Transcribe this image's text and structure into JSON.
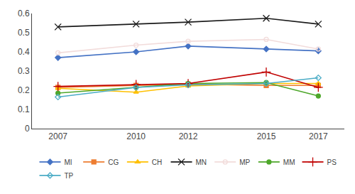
{
  "chart_data": {
    "type": "line",
    "x": [
      2007,
      2010,
      2012,
      2015,
      2017
    ],
    "series": [
      {
        "name": "MI",
        "color": "#4472C4",
        "marker": "diamond",
        "values": [
          0.37,
          0.4,
          0.43,
          0.415,
          0.405
        ]
      },
      {
        "name": "CG",
        "color": "#ED7D31",
        "marker": "square",
        "values": [
          0.215,
          0.225,
          0.232,
          0.225,
          0.225
        ]
      },
      {
        "name": "CH",
        "color": "#FFC000",
        "marker": "triangle-up",
        "values": [
          0.21,
          0.19,
          0.222,
          0.235,
          0.235
        ]
      },
      {
        "name": "MN",
        "color": "#1a1a1a",
        "marker": "x-thin-open",
        "values": [
          0.53,
          0.545,
          0.555,
          0.575,
          0.545
        ]
      },
      {
        "name": "MP",
        "color": "#F2DCDB",
        "marker": "circle-open",
        "values": [
          0.395,
          0.435,
          0.455,
          0.465,
          0.415
        ]
      },
      {
        "name": "MM",
        "color": "#4EA72A",
        "marker": "circle",
        "values": [
          0.185,
          0.215,
          0.235,
          0.24,
          0.17
        ]
      },
      {
        "name": "PS",
        "color": "#C00000",
        "marker": "cross-thin-open",
        "values": [
          0.22,
          0.23,
          0.235,
          0.295,
          0.215
        ]
      },
      {
        "name": "TP",
        "color": "#4bacc6",
        "marker": "diamond-open",
        "values": [
          0.165,
          0.215,
          0.228,
          0.235,
          0.265
        ]
      }
    ],
    "xlim": [
      2006,
      2018
    ],
    "xticks": [
      2007,
      2010,
      2012,
      2015,
      2017
    ],
    "ylim": [
      0,
      0.6
    ],
    "yticks": [
      0,
      0.1,
      0.2,
      0.3,
      0.4,
      0.5,
      0.6
    ],
    "grid": false,
    "legend": "bottom"
  }
}
